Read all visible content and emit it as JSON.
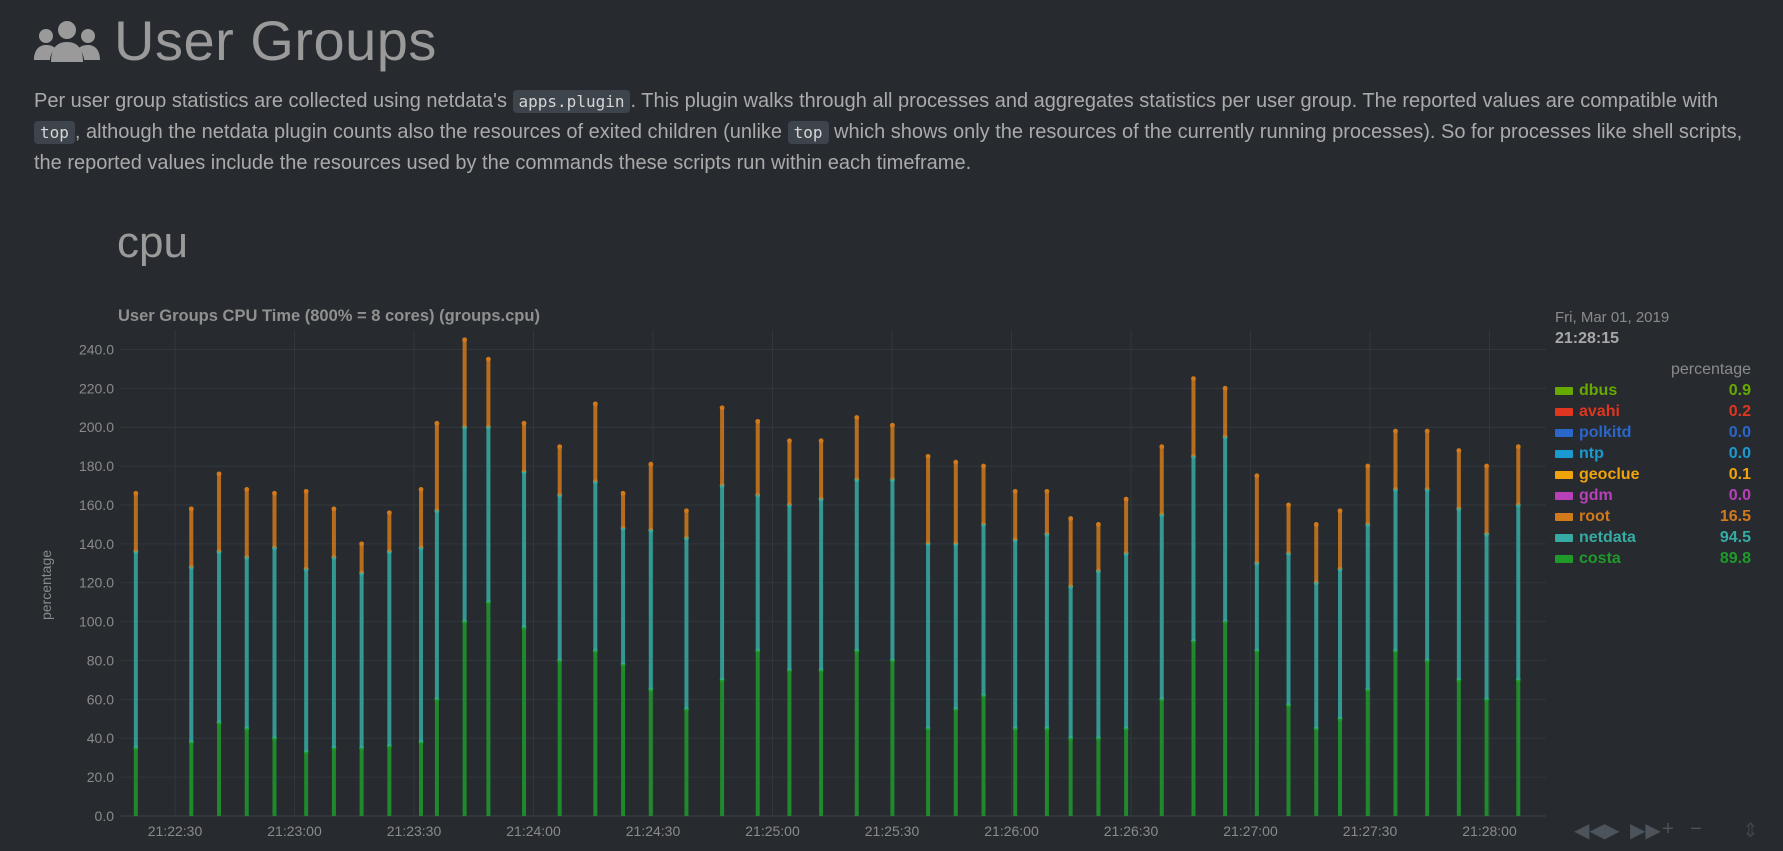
{
  "header": {
    "icon": "users-icon",
    "title": "User Groups"
  },
  "description": {
    "p1": "Per user group statistics are collected using netdata's ",
    "code1": "apps.plugin",
    "p2": ". This plugin walks through all processes and aggregates statistics per user group. The reported values are compatible with ",
    "code2": "top",
    "p3": ", although the netdata plugin counts also the resources of exited children (unlike ",
    "code3": "top",
    "p4": " which shows only the resources of the currently running processes). So for processes like shell scripts, the reported values include the resources used by the commands these scripts run within each timeframe."
  },
  "section": {
    "title": "cpu"
  },
  "chart": {
    "title": "User Groups CPU Time (800% = 8 cores) (groups.cpu)",
    "ylabel": "percentage"
  },
  "legend": {
    "date": "Fri, Mar 01, 2019",
    "time": "21:28:15",
    "units": "percentage",
    "items": [
      {
        "name": "dbus",
        "value": "0.9",
        "color": "#66aa00"
      },
      {
        "name": "avahi",
        "value": "0.2",
        "color": "#e0351e"
      },
      {
        "name": "polkitd",
        "value": "0.0",
        "color": "#2b66c9"
      },
      {
        "name": "ntp",
        "value": "0.0",
        "color": "#1a9ad0"
      },
      {
        "name": "geoclue",
        "value": "0.1",
        "color": "#f0a30a"
      },
      {
        "name": "gdm",
        "value": "0.0",
        "color": "#b840b8"
      },
      {
        "name": "root",
        "value": "16.5",
        "color": "#d2791b"
      },
      {
        "name": "netdata",
        "value": "94.5",
        "color": "#36aba3"
      },
      {
        "name": "costa",
        "value": "89.8",
        "color": "#1f9a2a"
      }
    ]
  },
  "controls": {
    "back": "◀◀",
    "play": "▶",
    "forward": "▶▶",
    "zoom_in": "+",
    "zoom_out": "−",
    "resize": "⇕"
  },
  "chart_data": {
    "type": "area",
    "title": "User Groups CPU Time (800% = 8 cores) (groups.cpu)",
    "ylabel": "percentage",
    "ylim": [
      0,
      250
    ],
    "yticks": [
      "0.0",
      "20.0",
      "40.0",
      "60.0",
      "80.0",
      "100.0",
      "120.0",
      "140.0",
      "160.0",
      "180.0",
      "200.0",
      "220.0",
      "240.0"
    ],
    "xticks": [
      "21:22:30",
      "21:23:00",
      "21:23:30",
      "21:24:00",
      "21:24:30",
      "21:25:00",
      "21:25:30",
      "21:26:00",
      "21:26:30",
      "21:27:00",
      "21:27:30",
      "21:28:00"
    ],
    "x_start_seconds": 0,
    "x_end_seconds": 360,
    "series_stack_order": [
      "costa",
      "netdata",
      "root"
    ],
    "points": [
      {
        "t": 4,
        "costa": 35,
        "netdata": 101,
        "root": 30
      },
      {
        "t": 18,
        "costa": 38,
        "netdata": 90,
        "root": 30
      },
      {
        "t": 25,
        "costa": 48,
        "netdata": 88,
        "root": 40
      },
      {
        "t": 32,
        "costa": 45,
        "netdata": 88,
        "root": 35
      },
      {
        "t": 39,
        "costa": 40,
        "netdata": 98,
        "root": 28
      },
      {
        "t": 47,
        "costa": 33,
        "netdata": 94,
        "root": 40
      },
      {
        "t": 54,
        "costa": 35,
        "netdata": 98,
        "root": 25
      },
      {
        "t": 61,
        "costa": 35,
        "netdata": 90,
        "root": 15
      },
      {
        "t": 68,
        "costa": 36,
        "netdata": 100,
        "root": 20
      },
      {
        "t": 76,
        "costa": 38,
        "netdata": 100,
        "root": 30
      },
      {
        "t": 80,
        "costa": 60,
        "netdata": 97,
        "root": 45
      },
      {
        "t": 87,
        "costa": 100,
        "netdata": 100,
        "root": 45
      },
      {
        "t": 93,
        "costa": 110,
        "netdata": 90,
        "root": 35
      },
      {
        "t": 102,
        "costa": 97,
        "netdata": 80,
        "root": 25
      },
      {
        "t": 111,
        "costa": 80,
        "netdata": 85,
        "root": 25
      },
      {
        "t": 120,
        "costa": 85,
        "netdata": 87,
        "root": 40
      },
      {
        "t": 127,
        "costa": 78,
        "netdata": 70,
        "root": 18
      },
      {
        "t": 134,
        "costa": 65,
        "netdata": 82,
        "root": 34
      },
      {
        "t": 143,
        "costa": 55,
        "netdata": 88,
        "root": 14
      },
      {
        "t": 152,
        "costa": 70,
        "netdata": 100,
        "root": 40
      },
      {
        "t": 161,
        "costa": 85,
        "netdata": 80,
        "root": 38
      },
      {
        "t": 169,
        "costa": 75,
        "netdata": 85,
        "root": 33
      },
      {
        "t": 177,
        "costa": 75,
        "netdata": 88,
        "root": 30
      },
      {
        "t": 186,
        "costa": 85,
        "netdata": 88,
        "root": 32
      },
      {
        "t": 195,
        "costa": 80,
        "netdata": 93,
        "root": 28
      },
      {
        "t": 204,
        "costa": 45,
        "netdata": 95,
        "root": 45
      },
      {
        "t": 211,
        "costa": 55,
        "netdata": 85,
        "root": 42
      },
      {
        "t": 218,
        "costa": 62,
        "netdata": 88,
        "root": 30
      },
      {
        "t": 226,
        "costa": 45,
        "netdata": 97,
        "root": 25
      },
      {
        "t": 234,
        "costa": 45,
        "netdata": 100,
        "root": 22
      },
      {
        "t": 240,
        "costa": 40,
        "netdata": 78,
        "root": 35
      },
      {
        "t": 247,
        "costa": 40,
        "netdata": 86,
        "root": 24
      },
      {
        "t": 254,
        "costa": 45,
        "netdata": 90,
        "root": 28
      },
      {
        "t": 263,
        "costa": 60,
        "netdata": 95,
        "root": 35
      },
      {
        "t": 271,
        "costa": 90,
        "netdata": 95,
        "root": 40
      },
      {
        "t": 279,
        "costa": 100,
        "netdata": 95,
        "root": 25
      },
      {
        "t": 287,
        "costa": 85,
        "netdata": 45,
        "root": 45
      },
      {
        "t": 295,
        "costa": 57,
        "netdata": 78,
        "root": 25
      },
      {
        "t": 302,
        "costa": 45,
        "netdata": 75,
        "root": 30
      },
      {
        "t": 308,
        "costa": 50,
        "netdata": 77,
        "root": 30
      },
      {
        "t": 315,
        "costa": 65,
        "netdata": 85,
        "root": 30
      },
      {
        "t": 322,
        "costa": 85,
        "netdata": 83,
        "root": 30
      },
      {
        "t": 330,
        "costa": 80,
        "netdata": 88,
        "root": 30
      },
      {
        "t": 338,
        "costa": 70,
        "netdata": 88,
        "root": 30
      },
      {
        "t": 345,
        "costa": 60,
        "netdata": 85,
        "root": 35
      },
      {
        "t": 353,
        "costa": 70,
        "netdata": 90,
        "root": 30
      }
    ]
  }
}
